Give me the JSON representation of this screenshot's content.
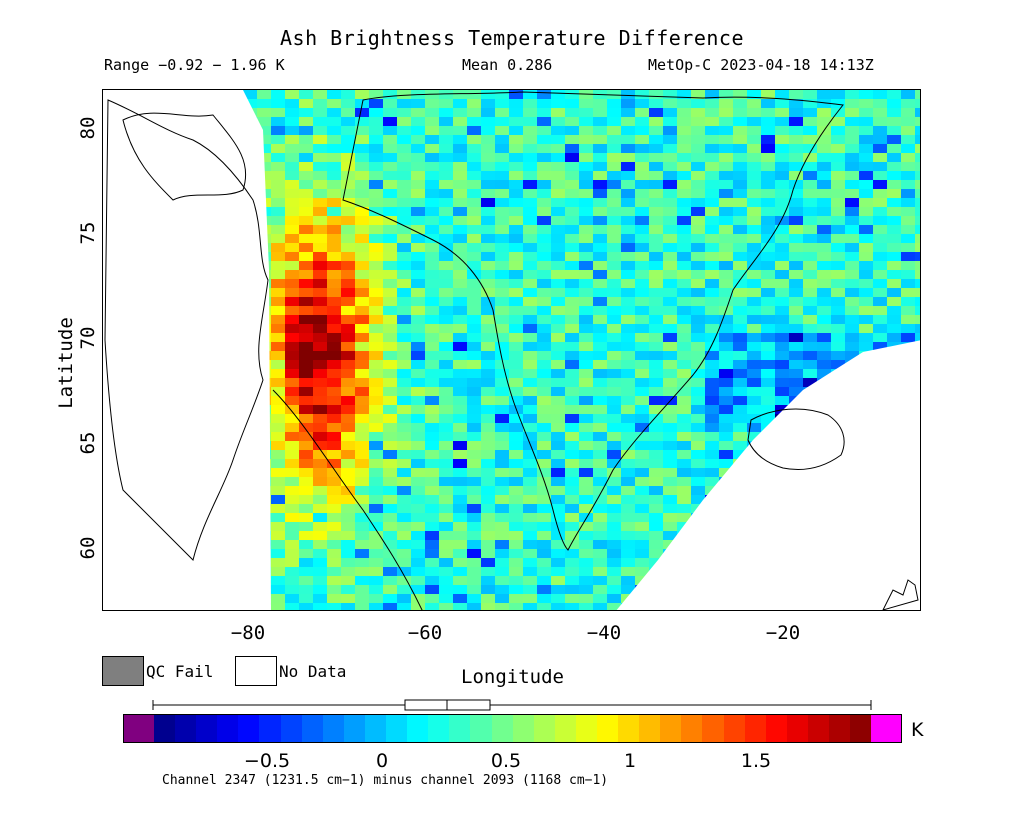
{
  "header": {
    "title": "Ash Brightness Temperature Difference",
    "range": "Range −0.92 − 1.96 K",
    "mean": "Mean 0.286",
    "satellite_time": "MetOp-C 2023-04-18 14:13Z"
  },
  "map": {
    "xlabel": "Longitude",
    "ylabel": "Latitude",
    "x_ticks": [
      "−80",
      "−60",
      "−40",
      "−20"
    ],
    "y_ticks": [
      "80",
      "75",
      "70",
      "65",
      "60"
    ],
    "lon_range": [
      -95,
      -3
    ],
    "lat_range": [
      57,
      82
    ],
    "regions": [
      "Greenland",
      "Baffin Island",
      "Iceland",
      "Svalbard"
    ]
  },
  "legend": {
    "qc_fail_label": "QC Fail",
    "no_data_label": "No Data",
    "qc_fail_color": "#7f7f7f",
    "no_data_color": "#ffffff"
  },
  "colorbar": {
    "units": "K",
    "tick_labels": [
      "−0.5",
      "0",
      "0.5",
      "1",
      "1.5"
    ],
    "tick_values": [
      -0.5,
      0,
      0.5,
      1,
      1.5
    ],
    "min": -0.92,
    "max": 1.96,
    "under_color": "#800080",
    "over_color": "#ff00ff",
    "colormap": "jet",
    "caption": "Channel 2347 (1231.5 cm−1) minus channel 2093 (1168 cm−1)"
  },
  "distribution_box": {
    "whisker_low": -0.92,
    "q1": 0.1,
    "median": 0.25,
    "q3": 0.42,
    "whisker_high": 1.96
  }
}
